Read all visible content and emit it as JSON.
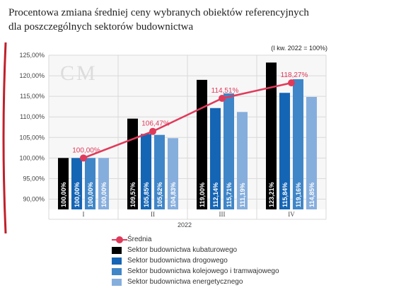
{
  "title_line1": "Procentowa zmiana średniej ceny wybranych obiektów referencyjnych",
  "title_line2": "dla poszczególnych sektorów budownictwa",
  "note": "(I kw. 2022 = 100%)",
  "watermark": "CM",
  "year_label": "2022",
  "chart_data": {
    "type": "bar",
    "categories": [
      "I",
      "II",
      "III",
      "IV"
    ],
    "ylim": [
      87.5,
      125
    ],
    "yticks": [
      "90,00%",
      "95,00%",
      "100,00%",
      "105,00%",
      "110,00%",
      "115,00%",
      "120,00%",
      "125,00%"
    ],
    "ytick_values": [
      90,
      95,
      100,
      105,
      110,
      115,
      120,
      125
    ],
    "series": [
      {
        "name": "Sektor budownictwa kubaturowego",
        "color": "#000000",
        "values": [
          100.0,
          109.57,
          119.0,
          123.21
        ],
        "labels": [
          "100,00%",
          "109,57%",
          "119,00%",
          "123,21%"
        ]
      },
      {
        "name": "Sektor budownictwa drogowego",
        "color": "#1565b5",
        "values": [
          100.0,
          105.85,
          112.14,
          115.84
        ],
        "labels": [
          "100,00%",
          "105,85%",
          "112,14%",
          "115,84%"
        ]
      },
      {
        "name": "Sektor budownictwa kolejowego i tramwajowego",
        "color": "#3f86c8",
        "values": [
          100.0,
          105.62,
          115.71,
          119.16
        ],
        "labels": [
          "100,00%",
          "105,62%",
          "115,71%",
          "119,16%"
        ]
      },
      {
        "name": "Sektor budownictwa energetycznego",
        "color": "#86aedd",
        "values": [
          100.0,
          104.83,
          111.19,
          114.85
        ],
        "labels": [
          "100,00%",
          "104,83%",
          "111,19%",
          "114,85%"
        ]
      }
    ],
    "line": {
      "name": "Średnia",
      "color": "#e03a5a",
      "values": [
        100.0,
        106.47,
        114.51,
        118.27
      ],
      "labels": [
        "100,00%",
        "106,47%",
        "114,51%",
        "118,27%"
      ]
    }
  },
  "legend": [
    "Średnia",
    "Sektor budownictwa kubaturowego",
    "Sektor budownictwa drogowego",
    "Sektor budownictwa kolejowego i tramwajowego",
    "Sektor budownictwa energetycznego"
  ]
}
